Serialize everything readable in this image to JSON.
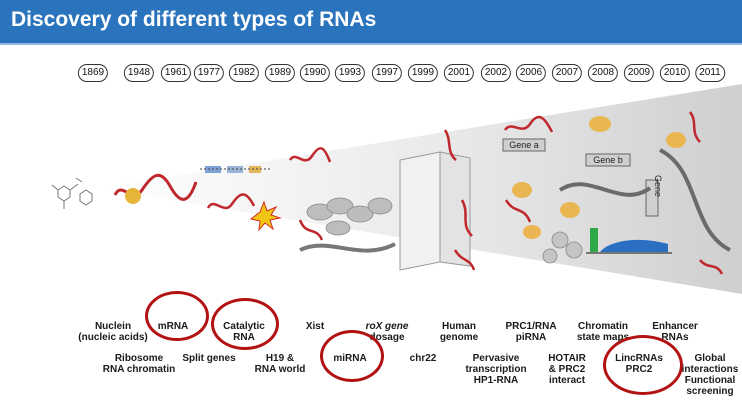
{
  "header": {
    "title": "Discovery of different types of RNAs"
  },
  "timeline": {
    "years": [
      "1869",
      "1948",
      "1961",
      "1977",
      "1982",
      "1989",
      "1990",
      "1993",
      "1997",
      "1999",
      "2001",
      "2002",
      "2006",
      "2007",
      "2008",
      "2009",
      "2010",
      "2011"
    ]
  },
  "labels_top": [
    [
      "Nuclein",
      "(nucleic acids)"
    ],
    [
      "mRNA"
    ],
    [
      "Catalytic",
      "RNA"
    ],
    [
      "Xist"
    ],
    [
      "roX gene",
      "dosage"
    ],
    [
      "Human",
      "genome"
    ],
    [
      "PRC1/RNA",
      "piRNA"
    ],
    [
      "Chromatin",
      "state maps"
    ],
    [
      "Enhancer",
      "RNAs"
    ]
  ],
  "labels_bottom": [
    [
      "Ribosome",
      "RNA chromatin"
    ],
    [
      "Split genes"
    ],
    [
      "H19 &",
      "RNA world"
    ],
    [
      "miRNA"
    ],
    [
      "chr22"
    ],
    [
      "Pervasive",
      "transcription",
      "HP1-RNA"
    ],
    [
      "HOTAIR",
      "& PRC2",
      "interact"
    ],
    [
      "LincRNAs",
      "PRC2"
    ],
    [
      "Global",
      "interactions",
      "Functional",
      "screening"
    ]
  ],
  "art_labels": {
    "gene_a": "Gene a",
    "gene_b": "Gene b",
    "gene": "Gene"
  },
  "colors": {
    "header": "#2a73bd",
    "highlight": "#b31212",
    "rna": "#c0282d"
  }
}
